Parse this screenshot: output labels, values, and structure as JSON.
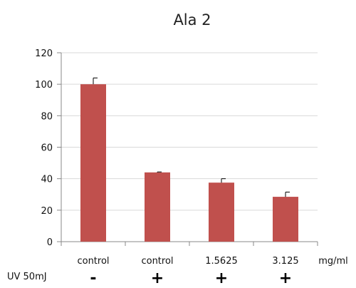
{
  "chart_data": {
    "type": "bar",
    "title": "Ala 2",
    "categories": [
      "control",
      "control",
      "1.5625",
      "3.125"
    ],
    "category_unit": "mg/ml",
    "values": [
      100,
      44,
      37.5,
      28.5
    ],
    "error": [
      4,
      0.3,
      2.5,
      3
    ],
    "ylim": [
      0,
      120
    ],
    "yticks": [
      0,
      20,
      40,
      60,
      80,
      100,
      120
    ],
    "bar_color": "#c0504d",
    "gridlines": true,
    "legend": "none",
    "treatment_row": {
      "label": "UV 50mJ",
      "signs": [
        "-",
        "+",
        "+",
        "+"
      ]
    }
  }
}
